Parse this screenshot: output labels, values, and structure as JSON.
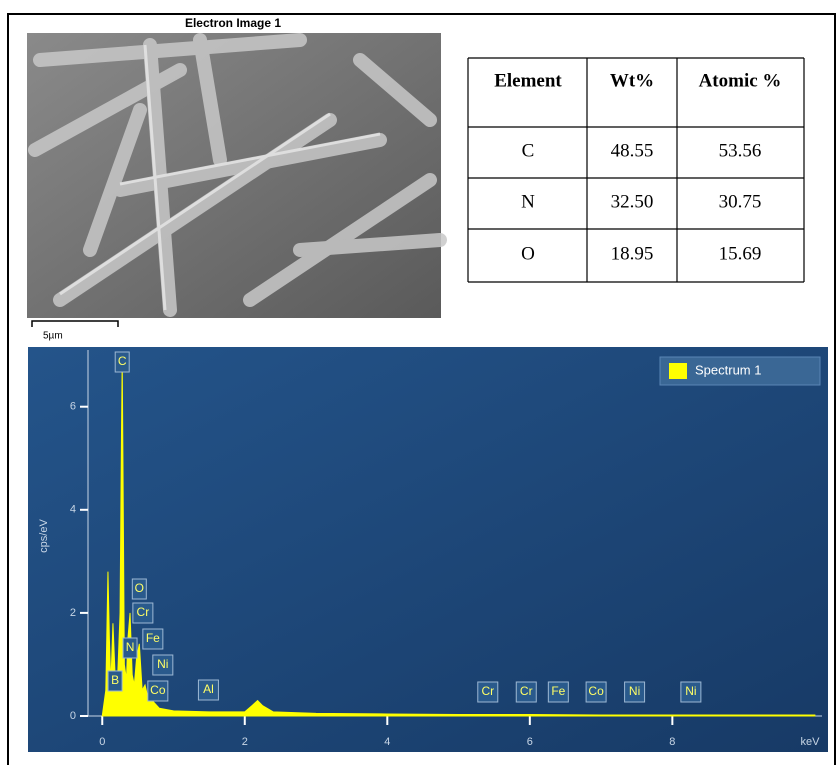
{
  "image": {
    "title": "Electron Image 1",
    "scale_label": "5µm"
  },
  "table": {
    "header": [
      "Element",
      "Wt%",
      "Atomic %"
    ],
    "rows": [
      [
        "C",
        "48.55",
        "53.56"
      ],
      [
        "N",
        "32.50",
        "30.75"
      ],
      [
        "O",
        "18.95",
        "15.69"
      ]
    ]
  },
  "chart_data": {
    "type": "area",
    "xlabel": "keV",
    "ylabel": "cps/eV",
    "x": [
      0,
      0.05,
      0.08,
      0.1,
      0.12,
      0.15,
      0.18,
      0.2,
      0.22,
      0.25,
      0.27,
      0.28,
      0.29,
      0.31,
      0.34,
      0.36,
      0.39,
      0.42,
      0.45,
      0.48,
      0.52,
      0.56,
      0.6,
      0.65,
      0.7,
      0.8,
      1.0,
      1.5,
      2.0,
      2.1,
      2.18,
      2.25,
      2.4,
      3,
      4,
      5,
      6,
      7,
      8,
      9,
      10
    ],
    "series": [
      {
        "name": "Spectrum 1",
        "color": "#ffff00",
        "values": [
          0,
          0.5,
          2.8,
          1.5,
          0.6,
          1.8,
          0.8,
          0.5,
          0.9,
          2.0,
          5.5,
          6.9,
          5.0,
          1.0,
          0.7,
          1.5,
          2.0,
          0.8,
          0.6,
          1.1,
          1.4,
          0.5,
          0.6,
          0.3,
          0.3,
          0.15,
          0.1,
          0.08,
          0.08,
          0.2,
          0.3,
          0.2,
          0.08,
          0.05,
          0.04,
          0.03,
          0.03,
          0.02,
          0.02,
          0.02,
          0.02
        ]
      }
    ],
    "xlim": [
      -0.2,
      10.1
    ],
    "ylim": [
      0,
      7.1
    ],
    "xticks": [
      0,
      2,
      4,
      6,
      8
    ],
    "yticks": [
      0,
      2,
      4,
      6
    ],
    "annotations": [
      {
        "text": "C",
        "x": 0.28
      },
      {
        "text": "B",
        "x": 0.18
      },
      {
        "text": "N",
        "x": 0.39
      },
      {
        "text": "O",
        "x": 0.52
      },
      {
        "text": "Cr",
        "x": 0.57
      },
      {
        "text": "Fe",
        "x": 0.71
      },
      {
        "text": "Ni",
        "x": 0.85
      },
      {
        "text": "Co",
        "x": 0.78
      },
      {
        "text": "Al",
        "x": 1.49
      },
      {
        "text": "Cr",
        "x": 5.41
      },
      {
        "text": "Cr",
        "x": 5.95
      },
      {
        "text": "Fe",
        "x": 6.4
      },
      {
        "text": "Co",
        "x": 6.93
      },
      {
        "text": "Ni",
        "x": 7.47
      },
      {
        "text": "Ni",
        "x": 8.26
      }
    ],
    "legend": "top-right"
  }
}
